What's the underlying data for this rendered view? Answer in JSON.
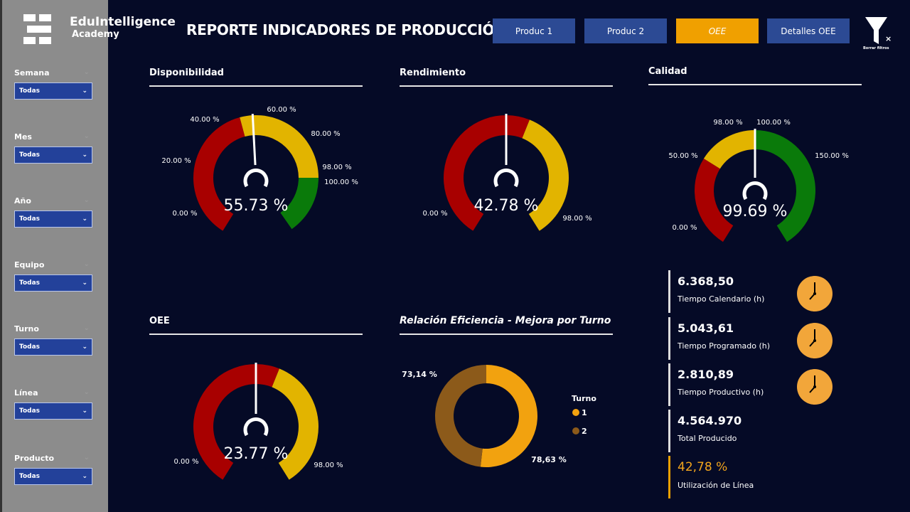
{
  "brand": {
    "name": "EduIntelligence",
    "sub": "Academy"
  },
  "header": {
    "title": "REPORTE INDICADORES DE PRODUCCIÓN",
    "nav": [
      {
        "label": "Produc 1",
        "active": false
      },
      {
        "label": "Produc 2",
        "active": false
      },
      {
        "label": "OEE",
        "active": true
      },
      {
        "label": "Detalles OEE",
        "active": false
      }
    ],
    "clear_filters": "Borrar filtros"
  },
  "filters": [
    {
      "label": "Semana",
      "value": "Todas"
    },
    {
      "label": "Mes",
      "value": "Todas"
    },
    {
      "label": "Año",
      "value": "Todas"
    },
    {
      "label": "Equipo",
      "value": "Todas"
    },
    {
      "label": "Turno",
      "value": "Todas"
    },
    {
      "label": "Línea",
      "value": "Todas"
    },
    {
      "label": "Producto",
      "value": "Todas"
    }
  ],
  "colors": {
    "red": "#a80000",
    "yellow": "#e2b400",
    "green": "#0a7a0a",
    "accent": "#f0a000",
    "navy": "#050a26",
    "button": "#2c4a94"
  },
  "gauges": [
    {
      "title": "Disponibilidad",
      "value": "55.73 %",
      "bands": [
        {
          "from": 0,
          "to": 40,
          "color": "red"
        },
        {
          "from": 40,
          "to": 98,
          "color": "yellow"
        },
        {
          "from": 98,
          "to": 100,
          "color": "green"
        }
      ],
      "labels": [
        "0.00 %",
        "20.00 %",
        "40.00 %",
        "60.00 %",
        "80.00 %",
        "98.00 %",
        "100.00 %"
      ]
    },
    {
      "title": "Rendimiento",
      "value": "42.78 %",
      "bands": [
        {
          "from": 0,
          "to": 50,
          "color": "red"
        },
        {
          "from": 50,
          "to": 98,
          "color": "yellow"
        }
      ],
      "labels": [
        "0.00 %",
        "98.00 %"
      ]
    },
    {
      "title": "Calidad",
      "value": "99.69 %",
      "bands": [
        {
          "from": 0,
          "to": 50,
          "color": "red"
        },
        {
          "from": 50,
          "to": 98,
          "color": "yellow"
        },
        {
          "from": 100,
          "to": 150,
          "color": "green"
        }
      ],
      "labels": [
        "0.00 %",
        "50.00 %",
        "98.00 %",
        "100.00 %",
        "150.00 %"
      ]
    },
    {
      "title": "OEE",
      "value": "23.77 %",
      "bands": [
        {
          "from": 0,
          "to": 50,
          "color": "red"
        },
        {
          "from": 50,
          "to": 98,
          "color": "yellow"
        }
      ],
      "labels": [
        "0.00 %",
        "98.00 %"
      ]
    }
  ],
  "donut": {
    "title": "Relación Eficiencia - Mejora por Turno",
    "legend_title": "Turno",
    "slices": [
      {
        "name": "1",
        "value": 78.63,
        "label": "78,63 %",
        "color": "#f2a20f"
      },
      {
        "name": "2",
        "value": 73.14,
        "label": "73,14 %",
        "color": "#8c5a1a"
      }
    ]
  },
  "kpis": [
    {
      "value": "6.368,50",
      "label": "Tiempo Calendario (h)",
      "icon": "clock-icon"
    },
    {
      "value": "5.043,61",
      "label": "Tiempo Programado (h)",
      "icon": "clock-icon"
    },
    {
      "value": "2.810,89",
      "label": "Tiempo Productivo (h)",
      "icon": "clock-icon"
    },
    {
      "value": "4.564.970",
      "label": "Total Producido"
    },
    {
      "value": "42,78 %",
      "label": "Utilización de Línea"
    }
  ]
}
